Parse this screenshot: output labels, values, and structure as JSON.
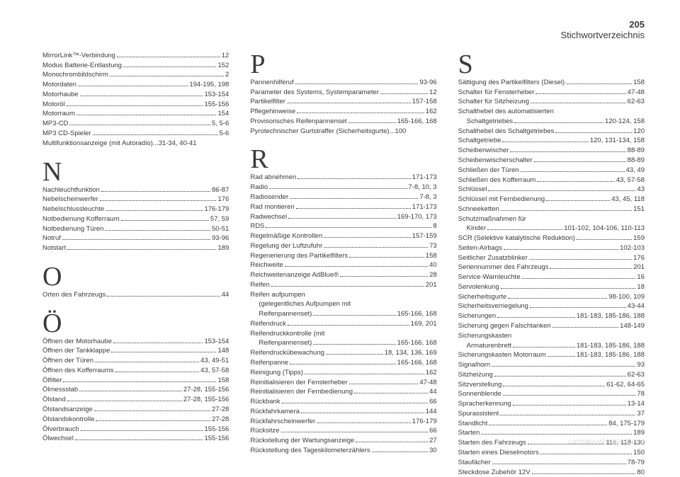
{
  "header": {
    "page_number": "205",
    "title": "Stichwortverzeichnis"
  },
  "columns": [
    {
      "sections": [
        {
          "letter": "",
          "entries": [
            {
              "label": "MirrorLink™-Verbindung",
              "page": "12"
            },
            {
              "label": "Modus Batterie-Entlastung",
              "page": "152"
            },
            {
              "label": "Monochrombildschirm",
              "page": "2"
            },
            {
              "label": "Motordaten",
              "page": "194-195, 198"
            },
            {
              "label": "Motorhaube",
              "page": "153-154"
            },
            {
              "label": "Motoröl",
              "page": "155-156"
            },
            {
              "label": "Motorraum",
              "page": "154"
            },
            {
              "label": "MP3-CD",
              "page": "5, 5-6"
            },
            {
              "label": "MP3 CD-Spieler",
              "page": "5-6"
            },
            {
              "label": "Multifunktionsanzeige (mit Autoradio)",
              "page": "31-34, 40-41",
              "nodots": true
            }
          ]
        },
        {
          "letter": "N",
          "entries": [
            {
              "label": "Nachleuchtfunktion",
              "page": "86-87"
            },
            {
              "label": "Nebelscheinwerfer",
              "page": "176"
            },
            {
              "label": "Nebelschlussleuchte",
              "page": "176-179"
            },
            {
              "label": "Notbedienung Kofferraum",
              "page": "57, 59"
            },
            {
              "label": "Notbedienung Türen",
              "page": "50-51"
            },
            {
              "label": "Notruf",
              "page": "93-96"
            },
            {
              "label": "Notstart",
              "page": "189"
            }
          ]
        },
        {
          "letter": "O",
          "entries": [
            {
              "label": "Orten des Fahrzeugs",
              "page": "44"
            }
          ]
        },
        {
          "letter": "Ö",
          "entries": [
            {
              "label": "Öffnen der Motorhaube",
              "page": "153-154"
            },
            {
              "label": "Öffnen der Tankklappe",
              "page": "148"
            },
            {
              "label": "Öffnen der Türen",
              "page": "43, 49-51"
            },
            {
              "label": "Öffnen des Kofferraums",
              "page": "43, 57-58"
            },
            {
              "label": "Ölfilter",
              "page": "158"
            },
            {
              "label": "Ölmessstab",
              "page": "27-28, 155-156"
            },
            {
              "label": "Ölstand",
              "page": "27-28, 155-156"
            },
            {
              "label": "Ölstandsanzeige",
              "page": "27-28"
            },
            {
              "label": "Ölstandskontrolle",
              "page": "27-28"
            },
            {
              "label": "Ölverbrauch",
              "page": "155-156"
            },
            {
              "label": "Ölwechsel",
              "page": "155-156"
            }
          ]
        }
      ]
    },
    {
      "sections": [
        {
          "letter": "P",
          "first": true,
          "entries": [
            {
              "label": "Pannenhilferuf",
              "page": "93-96"
            },
            {
              "label": "Parameter des Systems, Systemparameter",
              "page": "12"
            },
            {
              "label": "Partikelfilter",
              "page": "157-158"
            },
            {
              "label": "Pflegehinweise",
              "page": "162"
            },
            {
              "label": "Provisorisches Reifenpannenset",
              "page": "165-166, 168"
            },
            {
              "label": "Pyrotechnischer Gurtstraffer (Sicherheitsgurte)",
              "page": "100",
              "nodots": true
            }
          ]
        },
        {
          "letter": "R",
          "entries": [
            {
              "label": "Rad abnehmen",
              "page": "171-173"
            },
            {
              "label": "Radio",
              "page": "7-8, 10, 3"
            },
            {
              "label": "Radiosender",
              "page": "7-8, 3"
            },
            {
              "label": "Rad montieren",
              "page": "171-173"
            },
            {
              "label": "Radwechsel",
              "page": "169-170, 173"
            },
            {
              "label": "RDS",
              "page": "8"
            },
            {
              "label": "Regelmäßige Kontrollen",
              "page": "157-159"
            },
            {
              "label": "Regelung der Luftzufuhr",
              "page": "73"
            },
            {
              "label": "Regenerierung des Partikelfilters",
              "page": "158"
            },
            {
              "label": "Reichweite",
              "page": "40"
            },
            {
              "label": "Reichweitenanzeige AdBlue®",
              "page": "28"
            },
            {
              "label": "Reifen",
              "page": "201"
            },
            {
              "label": "Reifen aufpumpen",
              "page": "",
              "nopage": true
            },
            {
              "label": "(gelegentliches Aufpumpen mit",
              "page": "",
              "indent": true,
              "nopage": true
            },
            {
              "label": "Reifenpannenset)",
              "page": "165-166, 168",
              "indent": true
            },
            {
              "label": "Reifendruck",
              "page": "169, 201"
            },
            {
              "label": "Reifendruckkontrolle (mit",
              "page": "",
              "nopage": true
            },
            {
              "label": "Reifenpannenset)",
              "page": "165-166, 168",
              "indent": true
            },
            {
              "label": "Reifendruckübewachung",
              "page": "18, 134, 136, 169"
            },
            {
              "label": "Reifenpanne",
              "page": "165-166, 168"
            },
            {
              "label": "Reinigung (Tipps)",
              "page": "162"
            },
            {
              "label": "Reinitialisieren der Fensterheber",
              "page": "47-48"
            },
            {
              "label": "Reinitialisieren der Fernbedienung",
              "page": "44"
            },
            {
              "label": "Rückbank",
              "page": "66"
            },
            {
              "label": "Rückfahrkamera",
              "page": "144"
            },
            {
              "label": "Rückfahrscheinwerfer",
              "page": "176-179"
            },
            {
              "label": "Rücksitze",
              "page": "66"
            },
            {
              "label": "Rückstellung der Wartungsanzeige",
              "page": "27"
            },
            {
              "label": "Rückstellung des Tageskilometerzählers",
              "page": "30"
            }
          ]
        }
      ]
    },
    {
      "sections": [
        {
          "letter": "S",
          "first": true,
          "entries": [
            {
              "label": "Sättigung des Partikelfilters (Diesel)",
              "page": "158"
            },
            {
              "label": "Schalter für Fensterheber",
              "page": "47-48"
            },
            {
              "label": "Schalter für Sitzheizung",
              "page": "62-63"
            },
            {
              "label": "Schalthebel des automatisierten",
              "page": "",
              "nopage": true
            },
            {
              "label": "Schaltgetriebes",
              "page": "120-124, 158",
              "indent": true
            },
            {
              "label": "Schalthebel des Schaltgetriebes",
              "page": "120"
            },
            {
              "label": "Schaltgetriebe",
              "page": "120, 131-134, 158"
            },
            {
              "label": "Scheibenwischer",
              "page": "88-89"
            },
            {
              "label": "Scheibenwischerschalter",
              "page": "88-89"
            },
            {
              "label": "Schließen der Türen",
              "page": "43, 49"
            },
            {
              "label": "Schließen des Kofferraum",
              "page": "43, 57-58"
            },
            {
              "label": "Schlüssel",
              "page": "43"
            },
            {
              "label": "Schlüssel mit Fernbedienung",
              "page": "43, 45, 118"
            },
            {
              "label": "Schneeketten",
              "page": "151"
            },
            {
              "label": "Schutzmaßnahmen für",
              "page": "",
              "nopage": true
            },
            {
              "label": "Kinder",
              "page": "101-102, 104-106, 110-113",
              "indent": true
            },
            {
              "label": "SCR (Selektive katalytische Reduktion)",
              "page": "159"
            },
            {
              "label": "Seiten-Airbags",
              "page": "102-103"
            },
            {
              "label": "Seitlicher Zusatzblinker",
              "page": "176"
            },
            {
              "label": "Seriennummer des Fahrzeugs",
              "page": "201"
            },
            {
              "label": "Service-Warnleuchte",
              "page": "16"
            },
            {
              "label": "Servolenkung",
              "page": "18"
            },
            {
              "label": "Sicherheitsgurte",
              "page": "98-100, 109"
            },
            {
              "label": "Sicherheitsverriegelung",
              "page": "43-44"
            },
            {
              "label": "Sicherungen",
              "page": "181-183, 185-186, 188"
            },
            {
              "label": "Sicherung gegen Falschtanken",
              "page": "148-149"
            },
            {
              "label": "Sicherungskasten",
              "page": "",
              "nopage": true
            },
            {
              "label": "Armaturenbrett",
              "page": "181-183, 185-186, 188",
              "indent": true
            },
            {
              "label": "Sicherungskasten Motorraum",
              "page": "181-183, 185-186, 188"
            },
            {
              "label": "Signalhorn",
              "page": "93"
            },
            {
              "label": "Sitzheizung",
              "page": "62-63"
            },
            {
              "label": "Sitzverstellung",
              "page": "61-62, 64-65"
            },
            {
              "label": "Sonnenblende",
              "page": "78"
            },
            {
              "label": "Spracherkennung",
              "page": "13-14"
            },
            {
              "label": "Spurassistent",
              "page": "37"
            },
            {
              "label": "Standlicht",
              "page": "84, 175-179"
            },
            {
              "label": "Starten",
              "page": "189"
            },
            {
              "label": "Starten des Fahrzeugs",
              "page": "116, 118-130"
            },
            {
              "label": "Starten eines Dieselmotors",
              "page": "150"
            },
            {
              "label": "Staufächer",
              "page": "78-79"
            },
            {
              "label": "Steckdose Zubehör 12V",
              "page": "80"
            }
          ]
        }
      ]
    }
  ],
  "footer": "carmanualsonline.info"
}
